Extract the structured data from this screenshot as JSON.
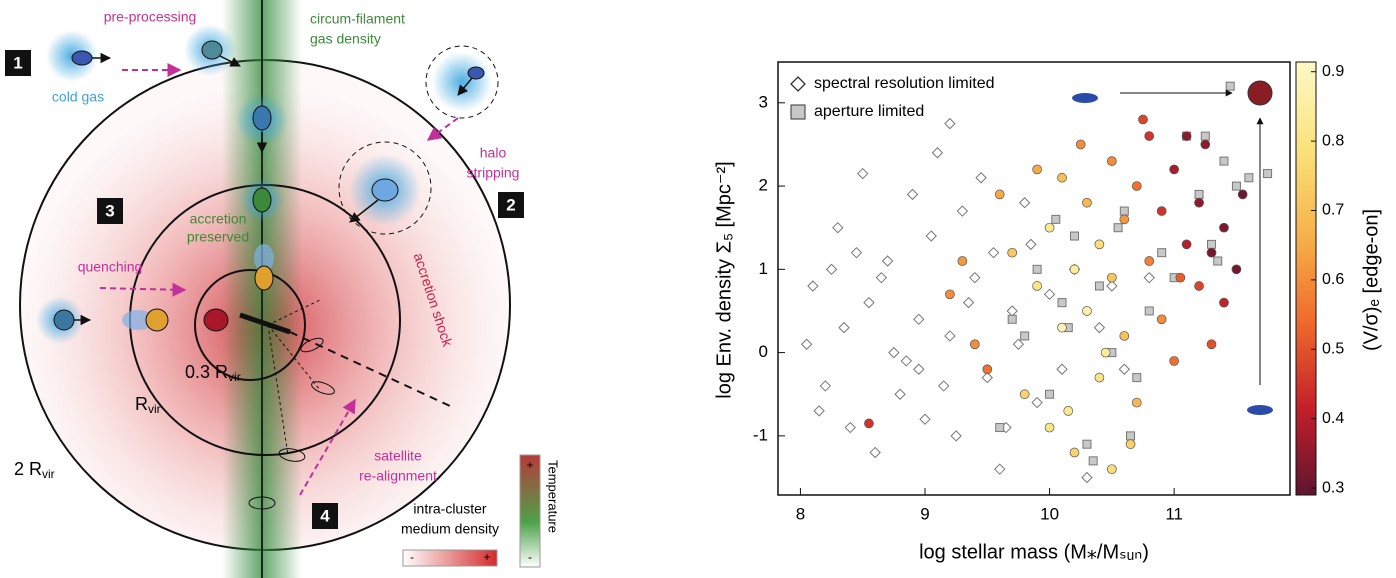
{
  "diagram": {
    "boxes": [
      "1",
      "2",
      "3",
      "4"
    ],
    "labels": {
      "pre_processing": "pre-processing",
      "circum": [
        "circum-filament",
        "gas density"
      ],
      "cold_gas": "cold gas",
      "halo": [
        "halo",
        "stripping"
      ],
      "accretion_preserved": [
        "accretion",
        "preserved"
      ],
      "accretion_shock": "accretion shock",
      "quenching": "quenching",
      "realign": [
        "satellite",
        "re-alignment"
      ]
    },
    "radii": [
      {
        "text": "0.3 R",
        "sub": "vir"
      },
      {
        "text": "R",
        "sub": "vir"
      },
      {
        "text": "2 R",
        "sub": "vir"
      }
    ],
    "temperature": {
      "title": "Temperature",
      "plus": "+",
      "minus": "-"
    },
    "icm": {
      "title": [
        "intra-cluster",
        "medium density"
      ],
      "minus": "-",
      "plus": "+"
    }
  },
  "chart_data": {
    "type": "scatter",
    "xlabel": "log stellar mass (M⁎/Mₛᵤₙ)",
    "ylabel": "log Env. density  Σ₅ [Mpc⁻²]",
    "xlim": [
      7.82,
      11.93
    ],
    "ylim": [
      -1.71,
      3.49
    ],
    "xticks": [
      8,
      9,
      10,
      11
    ],
    "yticks": [
      -1,
      0,
      1,
      2,
      3
    ],
    "colorbar": {
      "label": "(V/σ)ₑ [edge-on]",
      "clim": [
        0.29,
        0.914
      ],
      "ticks": [
        0.3,
        0.4,
        0.5,
        0.6,
        0.7,
        0.8,
        0.9
      ],
      "colorscale": [
        "#5e1530",
        "#c41f2a",
        "#ef6a2c",
        "#f7b24a",
        "#fbe27c",
        "#fdf9c8"
      ]
    },
    "series": [
      {
        "name": "spectral resolution limited",
        "marker": "diamond",
        "color": "#ffffff",
        "edge": "#777777",
        "x": [
          8.05,
          8.1,
          8.2,
          8.3,
          8.35,
          8.4,
          8.5,
          8.55,
          8.6,
          8.7,
          8.75,
          8.8,
          8.9,
          8.95,
          9.0,
          9.05,
          9.1,
          9.2,
          9.25,
          9.3,
          9.4,
          9.5,
          9.55,
          9.6,
          9.7,
          9.8,
          9.9,
          10.0,
          10.1,
          10.2,
          10.3,
          10.4,
          10.5,
          8.15,
          8.45,
          8.65,
          8.85,
          9.15,
          9.35,
          9.45,
          9.65,
          9.75,
          9.85,
          8.25,
          8.95,
          9.2,
          10.6,
          10.8
        ],
        "values": [
          0.1,
          0.8,
          -0.4,
          1.5,
          0.3,
          -0.9,
          2.15,
          0.6,
          -1.2,
          1.1,
          0.0,
          -0.5,
          1.9,
          0.4,
          -0.8,
          1.4,
          2.4,
          0.2,
          -1.0,
          1.7,
          0.9,
          -0.3,
          1.2,
          -1.4,
          0.5,
          1.8,
          -0.6,
          0.7,
          -0.2,
          1.0,
          -1.5,
          0.3,
          0.8,
          -0.7,
          1.2,
          0.9,
          -0.1,
          -0.4,
          0.6,
          2.1,
          -0.9,
          0.1,
          1.3,
          1.0,
          -0.2,
          2.75,
          -0.2,
          0.9
        ]
      },
      {
        "name": "aperture limited",
        "marker": "square",
        "color": "#c8c8c8",
        "edge": "#777777",
        "x": [
          9.6,
          9.8,
          9.9,
          10.0,
          10.1,
          10.2,
          10.3,
          10.4,
          10.5,
          10.6,
          10.7,
          10.8,
          10.9,
          11.0,
          11.1,
          11.2,
          11.3,
          11.4,
          11.5,
          11.6,
          11.75,
          10.05,
          10.35,
          10.65,
          9.7,
          11.25,
          11.35,
          11.45,
          10.15,
          10.55
        ],
        "values": [
          -0.9,
          0.2,
          1.0,
          -0.5,
          0.6,
          1.4,
          -1.1,
          0.8,
          0.0,
          1.7,
          -0.3,
          0.5,
          1.2,
          0.9,
          2.6,
          1.9,
          1.3,
          2.3,
          2.0,
          2.1,
          2.15,
          1.6,
          -1.3,
          -1.0,
          0.4,
          2.6,
          1.1,
          3.2,
          0.3,
          1.5
        ]
      },
      {
        "marker": "circle",
        "edge": "#555555",
        "x": [
          9.2,
          8.55,
          9.5,
          9.6,
          9.7,
          9.8,
          9.9,
          10.0,
          10.0,
          10.1,
          10.1,
          10.2,
          10.2,
          10.3,
          10.3,
          10.4,
          10.4,
          10.5,
          10.5,
          10.5,
          10.6,
          10.6,
          10.7,
          10.7,
          10.8,
          10.8,
          10.9,
          10.9,
          11.0,
          11.0,
          11.1,
          11.1,
          11.2,
          11.2,
          11.3,
          11.3,
          11.4,
          11.4,
          11.5,
          11.55,
          9.4,
          9.9,
          10.15,
          10.25,
          10.45,
          10.75,
          11.05,
          9.3,
          10.65,
          11.25
        ],
        "values": [
          0.7,
          -0.85,
          -0.2,
          1.9,
          1.2,
          -0.5,
          0.8,
          1.5,
          -0.9,
          0.3,
          2.1,
          1.0,
          -1.2,
          0.5,
          1.8,
          -0.3,
          1.3,
          0.9,
          2.3,
          -1.4,
          0.2,
          1.6,
          -0.6,
          2.0,
          1.1,
          2.6,
          0.4,
          1.7,
          2.2,
          -0.1,
          1.3,
          2.6,
          0.8,
          1.8,
          1.2,
          0.1,
          1.5,
          0.6,
          1.0,
          1.9,
          0.1,
          2.2,
          -0.7,
          2.5,
          0.0,
          2.8,
          0.9,
          1.1,
          -1.1,
          2.5
        ],
        "color_values": [
          0.6,
          0.45,
          0.55,
          0.65,
          0.72,
          0.75,
          0.8,
          0.82,
          0.8,
          0.88,
          0.7,
          0.85,
          0.75,
          0.86,
          0.68,
          0.8,
          0.78,
          0.72,
          0.6,
          0.78,
          0.7,
          0.62,
          0.68,
          0.55,
          0.58,
          0.45,
          0.6,
          0.45,
          0.38,
          0.55,
          0.4,
          0.35,
          0.48,
          0.35,
          0.32,
          0.5,
          0.33,
          0.42,
          0.32,
          0.31,
          0.6,
          0.65,
          0.82,
          0.6,
          0.84,
          0.48,
          0.52,
          0.62,
          0.74,
          0.35
        ]
      }
    ]
  }
}
